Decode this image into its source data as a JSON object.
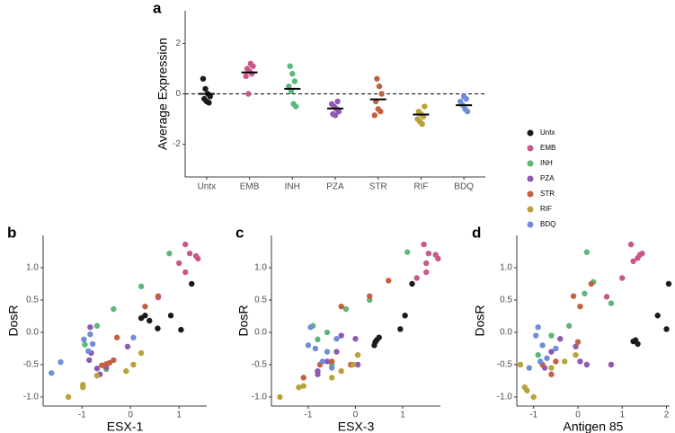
{
  "chart_data": [
    {
      "type": "strip",
      "label": "a",
      "ylabel": "Average Expression",
      "categories": [
        "Untx",
        "EMB",
        "INH",
        "PZA",
        "STR",
        "RIF",
        "BDQ"
      ],
      "ylim": [
        -3.3,
        3.3
      ],
      "yticks": [
        -2,
        0,
        2
      ],
      "hline": 0,
      "legend": "right",
      "series": [
        {
          "name": "Untx",
          "color": "#1a1a1a",
          "values": [
            0.6,
            0.2,
            0.0,
            -0.1,
            -0.2,
            -0.3,
            -0.35
          ],
          "mean": 0.0
        },
        {
          "name": "EMB",
          "color": "#c9578c",
          "values": [
            1.2,
            1.1,
            1.0,
            0.9,
            0.8,
            0.7,
            0.0
          ],
          "mean": 0.85
        },
        {
          "name": "INH",
          "color": "#5cb87a",
          "values": [
            1.1,
            0.8,
            0.5,
            0.3,
            0.1,
            -0.4,
            -0.5
          ],
          "mean": 0.2
        },
        {
          "name": "PZA",
          "color": "#8e59b0",
          "values": [
            -0.3,
            -0.4,
            -0.5,
            -0.6,
            -0.7,
            -0.8,
            -0.85
          ],
          "mean": -0.58
        },
        {
          "name": "STR",
          "color": "#c4603f",
          "values": [
            0.6,
            0.3,
            0.0,
            -0.3,
            -0.6,
            -0.7,
            -0.85
          ],
          "mean": -0.22
        },
        {
          "name": "RIF",
          "color": "#b9a23c",
          "values": [
            -0.5,
            -0.7,
            -0.8,
            -0.9,
            -1.0,
            -1.1,
            -1.2
          ],
          "mean": -0.82
        },
        {
          "name": "BDQ",
          "color": "#6f8ed8",
          "values": [
            -0.1,
            -0.2,
            -0.3,
            -0.45,
            -0.6,
            -0.7
          ],
          "mean": -0.45
        }
      ]
    },
    {
      "type": "scatter",
      "label": "b",
      "xlabel": "ESX-1",
      "ylabel": "DosR",
      "xlim": [
        -1.8,
        1.57
      ],
      "ylim": [
        -1.14,
        1.5
      ],
      "xticks": [
        -1,
        0,
        1
      ],
      "yticks": [
        {
          "value": -1,
          "label": "-1.0"
        },
        {
          "value": -0.5,
          "label": "-0.5"
        },
        {
          "value": 0,
          "label": "0.0"
        },
        {
          "value": 0.5,
          "label": "0.5"
        },
        {
          "value": 1,
          "label": "1.0"
        }
      ],
      "series": [
        {
          "color": "#1a1a1a",
          "x": [
            1.26,
            0.83,
            0.3,
            0.22,
            0.39,
            0.56,
            1.04
          ],
          "y": [
            0.75,
            0.26,
            0.26,
            0.22,
            0.18,
            0.06,
            0.04
          ]
        },
        {
          "color": "#c9578c",
          "x": [
            1.13,
            1.22,
            1.35,
            1.39,
            1.0,
            1.13,
            0.57
          ],
          "y": [
            1.36,
            1.22,
            1.18,
            1.14,
            1.07,
            0.93,
            0.54
          ]
        },
        {
          "color": "#5cb87a",
          "x": [
            0.8,
            0.22,
            -0.35,
            -0.69,
            -0.96,
            -0.94,
            -0.5
          ],
          "y": [
            1.22,
            0.71,
            0.36,
            0.1,
            -0.11,
            -0.19,
            -0.57
          ]
        },
        {
          "color": "#8e59b0",
          "x": [
            -0.83,
            -0.81,
            -0.85,
            -0.69,
            -0.63,
            -0.5,
            -0.06
          ],
          "y": [
            0.08,
            -0.32,
            -0.43,
            -0.56,
            -0.65,
            -0.54,
            -0.22
          ]
        },
        {
          "color": "#c4603f",
          "x": [
            0.57,
            0.3,
            -0.28,
            -0.59,
            -0.5,
            -0.43,
            -0.35
          ],
          "y": [
            0.56,
            0.4,
            -0.08,
            -0.51,
            -0.49,
            -0.47,
            -0.43
          ]
        },
        {
          "color": "#b9a23c",
          "x": [
            -1.28,
            -0.98,
            -0.98,
            -0.09,
            0.06,
            0.22,
            -0.69
          ],
          "y": [
            -1.0,
            -0.85,
            -0.81,
            -0.6,
            -0.5,
            -0.32,
            -0.67
          ]
        },
        {
          "color": "#6f8ed8",
          "x": [
            -1.63,
            -1.44,
            -0.96,
            -0.83,
            -0.78,
            0.06,
            -0.87
          ],
          "y": [
            -0.63,
            -0.46,
            -0.11,
            -0.03,
            -0.18,
            -0.08,
            -0.29
          ]
        }
      ]
    },
    {
      "type": "scatter",
      "label": "c",
      "xlabel": "ESX-3",
      "ylabel": "DosR",
      "xlim": [
        -1.78,
        1.8
      ],
      "ylim": [
        -1.14,
        1.5
      ],
      "xticks": [
        -1,
        0,
        1
      ],
      "yticks": [
        {
          "value": -1,
          "label": "-1.0"
        },
        {
          "value": -0.5,
          "label": "-0.5"
        },
        {
          "value": 0,
          "label": "0.0"
        },
        {
          "value": 0.5,
          "label": "0.5"
        },
        {
          "value": 1,
          "label": "1.0"
        }
      ],
      "series": [
        {
          "color": "#1a1a1a",
          "x": [
            1.2,
            1.05,
            0.95,
            0.45,
            0.42,
            0.4,
            0.5
          ],
          "y": [
            0.75,
            0.26,
            0.05,
            -0.12,
            -0.15,
            -0.2,
            -0.08
          ]
        },
        {
          "color": "#c9578c",
          "x": [
            1.45,
            1.55,
            1.7,
            1.75,
            1.5,
            1.5,
            1.3
          ],
          "y": [
            1.36,
            1.22,
            1.2,
            1.14,
            1.07,
            0.93,
            0.84
          ]
        },
        {
          "color": "#5cb87a",
          "x": [
            1.1,
            0.3,
            -0.2,
            -0.9,
            -0.8,
            -0.5,
            -0.6
          ],
          "y": [
            1.24,
            0.5,
            0.36,
            0.1,
            -0.11,
            -0.5,
            0.0
          ]
        },
        {
          "color": "#8e59b0",
          "x": [
            -0.4,
            0.05,
            -0.8,
            -0.8,
            -0.6,
            -0.3,
            0.0
          ],
          "y": [
            -0.3,
            -0.5,
            -0.6,
            -0.65,
            -0.45,
            -0.05,
            -0.1
          ]
        },
        {
          "color": "#c4603f",
          "x": [
            0.7,
            0.3,
            -0.3,
            -1.1,
            -0.75,
            -0.5,
            -0.1
          ],
          "y": [
            0.8,
            0.56,
            0.4,
            -0.7,
            -0.5,
            -0.45,
            -0.5
          ]
        },
        {
          "color": "#b9a23c",
          "x": [
            -1.6,
            -1.2,
            -1.1,
            -0.3,
            0.05,
            -0.05,
            -0.5
          ],
          "y": [
            -1.0,
            -0.85,
            -0.83,
            -0.6,
            -0.35,
            -0.5,
            -0.7
          ]
        },
        {
          "color": "#6f8ed8",
          "x": [
            -0.95,
            -1.0,
            -0.7,
            -0.85,
            -0.4,
            -0.6,
            -0.5
          ],
          "y": [
            0.08,
            -0.2,
            -0.45,
            -0.25,
            -0.1,
            -0.3,
            -0.55
          ]
        }
      ]
    },
    {
      "type": "scatter",
      "label": "d",
      "xlabel": "Antigen 85",
      "ylabel": "DosR",
      "xlim": [
        -1.38,
        2.07
      ],
      "ylim": [
        -1.14,
        1.5
      ],
      "xticks": [
        -1,
        0,
        1,
        2
      ],
      "yticks": [
        {
          "value": -1,
          "label": "-1.0"
        },
        {
          "value": -0.5,
          "label": "-0.5"
        },
        {
          "value": 0,
          "label": "0.0"
        },
        {
          "value": 0.5,
          "label": "0.5"
        },
        {
          "value": 1,
          "label": "1.0"
        }
      ],
      "series": [
        {
          "color": "#1a1a1a",
          "x": [
            2.05,
            1.8,
            2.0,
            1.3,
            1.35,
            1.25
          ],
          "y": [
            0.75,
            0.26,
            0.05,
            -0.12,
            -0.18,
            -0.14
          ]
        },
        {
          "color": "#c9578c",
          "x": [
            1.2,
            1.25,
            1.4,
            1.45,
            1.35,
            1.0,
            0.65
          ],
          "y": [
            1.36,
            1.1,
            1.2,
            1.22,
            1.15,
            0.84,
            0.55
          ]
        },
        {
          "color": "#5cb87a",
          "x": [
            0.2,
            0.35,
            0.15,
            -0.2,
            0.75,
            -0.6,
            -0.9
          ],
          "y": [
            1.24,
            0.78,
            0.6,
            0.1,
            0.45,
            -0.05,
            -0.35
          ]
        },
        {
          "color": "#8e59b0",
          "x": [
            -0.75,
            -0.6,
            -0.4,
            0.2,
            0.05,
            0.75,
            -0.05
          ],
          "y": [
            -0.55,
            -0.3,
            -0.1,
            -0.5,
            -0.45,
            -0.5,
            -0.22
          ]
        },
        {
          "color": "#c4603f",
          "x": [
            0.3,
            -0.1,
            0.05,
            -0.5,
            -0.8,
            -0.6,
            0.0
          ],
          "y": [
            0.75,
            0.56,
            0.4,
            -0.45,
            -0.5,
            -0.65,
            -0.15
          ]
        },
        {
          "color": "#b9a23c",
          "x": [
            -1.3,
            -1.2,
            -1.15,
            -1.0,
            -0.6,
            -0.3,
            -0.05
          ],
          "y": [
            -0.5,
            -0.85,
            -0.9,
            -1.0,
            -0.55,
            -0.45,
            -0.35
          ]
        },
        {
          "color": "#6f8ed8",
          "x": [
            -0.9,
            -0.8,
            -0.85,
            -0.95,
            -0.5,
            -1.1,
            -0.7
          ],
          "y": [
            0.08,
            -0.2,
            -0.45,
            -0.05,
            -0.25,
            -0.55,
            -0.4
          ]
        }
      ]
    }
  ]
}
